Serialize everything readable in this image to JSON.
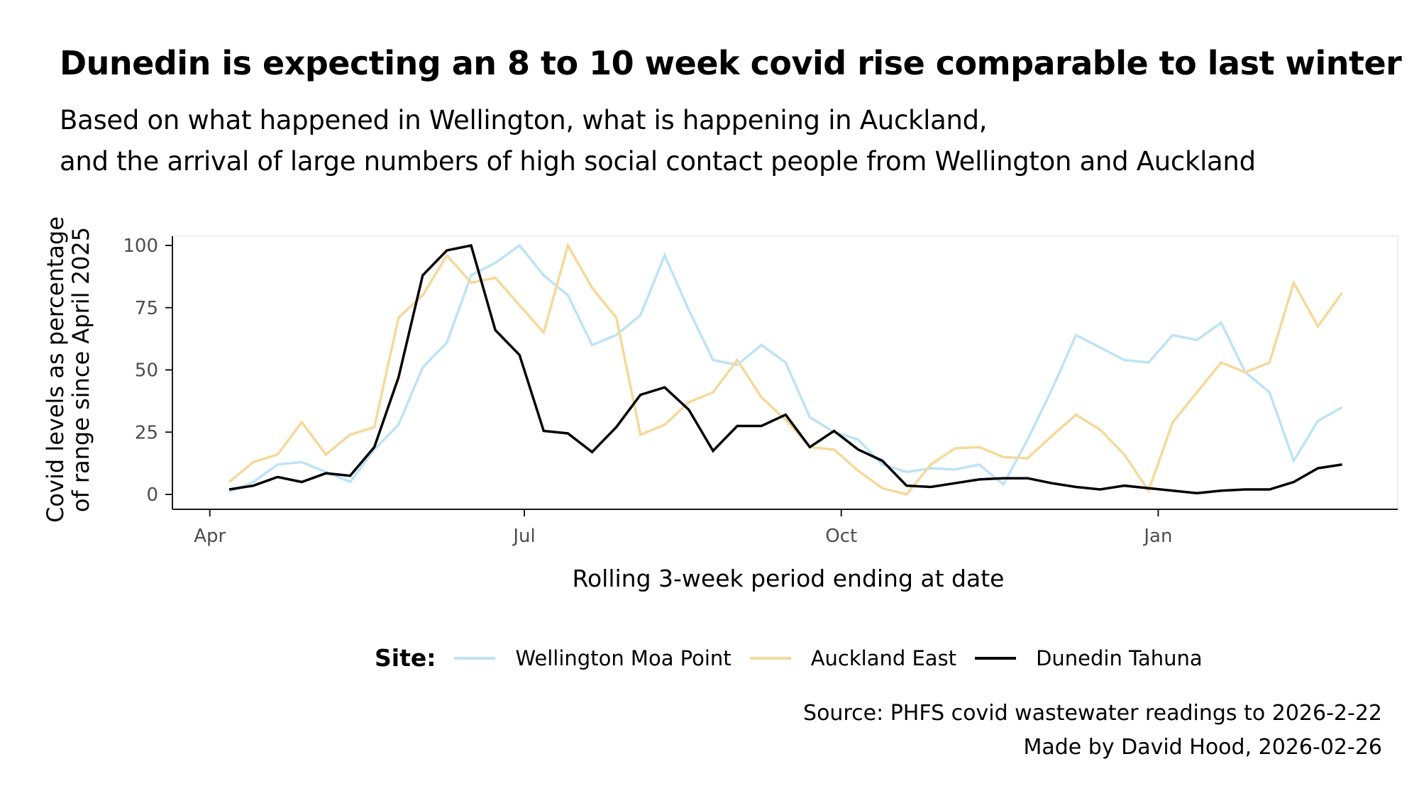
{
  "chart_data": {
    "type": "line",
    "title": "Dunedin is expecting an 8 to 10 week covid rise comparable to last winter",
    "subtitle_lines": [
      "Based on what happened in Wellington, what is happening in Auckland,",
      "and the arrival of large numbers of high social contact people from Wellington and Auckland"
    ],
    "xlabel": "Rolling 3-week period ending at date",
    "ylabel_lines": [
      "Covid levels as percentage",
      "of range since April 2025"
    ],
    "ylim": [
      0,
      100
    ],
    "y_ticks": [
      0,
      25,
      50,
      75,
      100
    ],
    "x_ticks": [
      {
        "label": "Apr",
        "week_offset": -0.8
      },
      {
        "label": "Jul",
        "week_offset": 12.2
      },
      {
        "label": "Oct",
        "week_offset": 25.3
      },
      {
        "label": "Jan",
        "week_offset": 38.4
      }
    ],
    "x_unit": "weekly points (47 consecutive weeks, Apr 2025 – Feb 2026)",
    "grid": false,
    "legend": {
      "title": "Site:",
      "placement": "bottom"
    },
    "series": [
      {
        "name": "Wellington Moa Point",
        "color": "#BDE3F5",
        "values": [
          1,
          5,
          12,
          13,
          9,
          5,
          18,
          28,
          51,
          61,
          88,
          93,
          100,
          88,
          80,
          60,
          64,
          72,
          96,
          74,
          54,
          52,
          60,
          53,
          31,
          25,
          22,
          12,
          9,
          10.5,
          10,
          12,
          4,
          22,
          42,
          64,
          59,
          54,
          53,
          64,
          62,
          69,
          49,
          41,
          13.5,
          29.5,
          35
        ]
      },
      {
        "name": "Auckland East",
        "color": "#F5D99A",
        "values": [
          5,
          13,
          16,
          29,
          16,
          24,
          27,
          71,
          80,
          96,
          85,
          87,
          76,
          65,
          100,
          83,
          71,
          24,
          28,
          37,
          41,
          54,
          39,
          30,
          19,
          18,
          9.5,
          2.5,
          0,
          12,
          18.5,
          19,
          15,
          14.5,
          23.5,
          32,
          26,
          16,
          1.5,
          29,
          41,
          53,
          49,
          53,
          85,
          67.5,
          81
        ]
      },
      {
        "name": "Dunedin Tahuna",
        "color": "#000000",
        "values": [
          2,
          3.5,
          7,
          5,
          8.5,
          7.5,
          19,
          47,
          88,
          98,
          100,
          66,
          56,
          25.5,
          24.5,
          17,
          27,
          40,
          43,
          34,
          17.5,
          27.5,
          27.5,
          32,
          19,
          25.5,
          18,
          13.5,
          3.5,
          3,
          4.5,
          6,
          6.5,
          6.5,
          4.5,
          3,
          2,
          3.5,
          2.5,
          1.5,
          0.5,
          1.5,
          2,
          2,
          5,
          10.5,
          12
        ]
      }
    ],
    "caption_lines": [
      "Source: PHFS covid wastewater readings to 2026-2-22",
      "Made by David Hood, 2026-02-26"
    ]
  }
}
